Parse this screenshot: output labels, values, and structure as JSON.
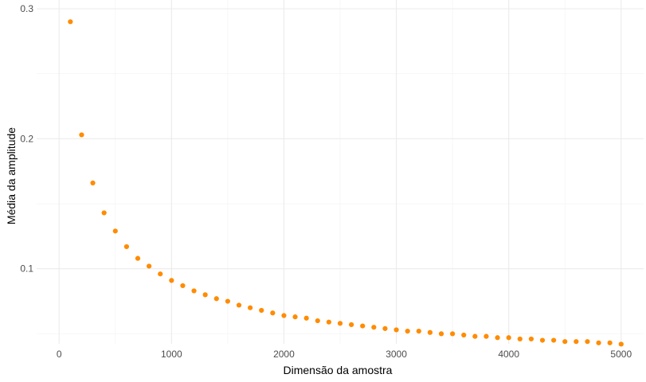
{
  "chart_data": {
    "type": "scatter",
    "title": "",
    "xlabel": "Dimensão da amostra",
    "ylabel": "Média da amplitude",
    "xlim": [
      -200,
      5200
    ],
    "ylim": [
      0.0435,
      0.3
    ],
    "x_ticks": [
      0,
      1000,
      2000,
      3000,
      4000,
      5000
    ],
    "x_tick_labels": [
      "0",
      "1000",
      "2000",
      "3000",
      "4000",
      "5000"
    ],
    "y_ticks": [
      0.1,
      0.2,
      0.3
    ],
    "y_tick_labels": [
      "0.1",
      "0.2",
      "0.3"
    ],
    "grid": true,
    "point_color": "#ff8c00",
    "series": [
      {
        "x": [
          100,
          200,
          300,
          400,
          500,
          600,
          700,
          800,
          900,
          1000,
          1100,
          1200,
          1300,
          1400,
          1500,
          1600,
          1700,
          1800,
          1900,
          2000,
          2100,
          2200,
          2300,
          2400,
          2500,
          2600,
          2700,
          2800,
          2900,
          3000,
          3100,
          3200,
          3300,
          3400,
          3500,
          3600,
          3700,
          3800,
          3900,
          4000,
          4100,
          4200,
          4300,
          4400,
          4500,
          4600,
          4700,
          4800,
          4900,
          5000
        ],
        "y": [
          0.29,
          0.203,
          0.166,
          0.143,
          0.129,
          0.117,
          0.108,
          0.102,
          0.096,
          0.091,
          0.087,
          0.083,
          0.08,
          0.077,
          0.075,
          0.072,
          0.07,
          0.068,
          0.066,
          0.064,
          0.063,
          0.062,
          0.06,
          0.059,
          0.058,
          0.057,
          0.056,
          0.055,
          0.054,
          0.053,
          0.052,
          0.052,
          0.051,
          0.05,
          0.05,
          0.049,
          0.048,
          0.048,
          0.047,
          0.047,
          0.046,
          0.046,
          0.045,
          0.045,
          0.044,
          0.044,
          0.044,
          0.043,
          0.043,
          0.042
        ]
      }
    ]
  }
}
